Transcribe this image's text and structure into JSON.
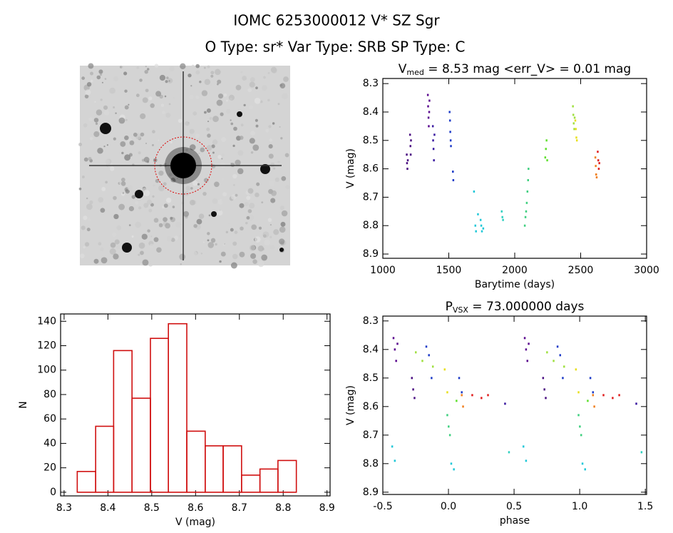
{
  "header": {
    "title": "IOMC 6253000012   V* SZ Sgr",
    "subtitle": "O Type: sr*   Var Type: SRB   SP Type: C"
  },
  "chart_data": [
    {
      "type": "scatter",
      "title": {
        "base": "V",
        "sub": "med",
        "rest": " = 8.53 mag <err_V> = 0.01 mag"
      },
      "xlabel": "Barytime (days)",
      "ylabel": "V (mag)",
      "xlim": [
        1000,
        3000
      ],
      "xticks": [
        1000,
        1500,
        2000,
        2500,
        3000
      ],
      "ylim": [
        8.915,
        8.282
      ],
      "yticks": [
        8.3,
        8.4,
        8.5,
        8.6,
        8.7,
        8.8,
        8.9
      ],
      "series": [
        {
          "color": "#4b0f82",
          "x": [
            1180,
            1182,
            1185,
            1188,
            1205,
            1208,
            1210,
            1212
          ],
          "values": [
            8.55,
            8.58,
            8.6,
            8.57,
            8.48,
            8.52,
            8.55,
            8.5
          ]
        },
        {
          "color": "#5b0a8f",
          "x": [
            1340,
            1342,
            1345,
            1347,
            1350,
            1352
          ],
          "values": [
            8.34,
            8.38,
            8.42,
            8.45,
            8.4,
            8.36
          ]
        },
        {
          "color": "#3a1aa0",
          "x": [
            1378,
            1380,
            1383,
            1386,
            1390
          ],
          "values": [
            8.45,
            8.5,
            8.53,
            8.57,
            8.48
          ]
        },
        {
          "color": "#1e3cc8",
          "x": [
            1505,
            1508,
            1510,
            1513,
            1515,
            1530,
            1533
          ],
          "values": [
            8.4,
            8.43,
            8.47,
            8.5,
            8.52,
            8.61,
            8.64
          ]
        },
        {
          "color": "#22c8d8",
          "x": [
            1690,
            1700,
            1705,
            1720,
            1740,
            1745,
            1750,
            1760
          ],
          "values": [
            8.68,
            8.8,
            8.82,
            8.76,
            8.78,
            8.8,
            8.82,
            8.81
          ]
        },
        {
          "color": "#30d0c0",
          "x": [
            1900,
            1905,
            1910
          ],
          "values": [
            8.75,
            8.77,
            8.78
          ]
        },
        {
          "color": "#40d080",
          "x": [
            2075,
            2080,
            2085,
            2090,
            2095,
            2100,
            2103
          ],
          "values": [
            8.8,
            8.77,
            8.75,
            8.72,
            8.68,
            8.64,
            8.6
          ]
        },
        {
          "color": "#60e030",
          "x": [
            2230,
            2235,
            2240,
            2245
          ],
          "values": [
            8.56,
            8.53,
            8.5,
            8.57
          ]
        },
        {
          "color": "#a0e040",
          "x": [
            2440,
            2443,
            2446,
            2450,
            2453
          ],
          "values": [
            8.38,
            8.41,
            8.44,
            8.46,
            8.42
          ]
        },
        {
          "color": "#e8e020",
          "x": [
            2458,
            2462,
            2466,
            2470
          ],
          "values": [
            8.43,
            8.46,
            8.49,
            8.5
          ]
        },
        {
          "color": "#f08020",
          "x": [
            2610,
            2613,
            2616,
            2620
          ],
          "values": [
            8.56,
            8.59,
            8.62,
            8.63
          ]
        },
        {
          "color": "#e02020",
          "x": [
            2628,
            2632,
            2636,
            2640
          ],
          "values": [
            8.54,
            8.57,
            8.6,
            8.58
          ]
        }
      ]
    },
    {
      "type": "histogram",
      "xlabel": "V (mag)",
      "ylabel": "N",
      "color": "#d01010",
      "bins": [
        8.33,
        8.372,
        8.413,
        8.455,
        8.497,
        8.538,
        8.58,
        8.622,
        8.663,
        8.705,
        8.747,
        8.788,
        8.83
      ],
      "values": [
        17,
        54,
        116,
        77,
        126,
        138,
        50,
        38,
        38,
        14,
        19,
        26
      ],
      "xlim": [
        8.292,
        8.907
      ],
      "xticks": [
        8.3,
        8.4,
        8.5,
        8.6,
        8.7,
        8.8,
        8.9
      ],
      "ylim": [
        -3,
        146
      ],
      "yticks": [
        0,
        20,
        40,
        60,
        80,
        100,
        120,
        140
      ]
    },
    {
      "type": "scatter",
      "title": {
        "base": "P",
        "sub": "VSX",
        "rest": " = 73.000000 days"
      },
      "xlabel": "phase",
      "ylabel": "V (mag)",
      "xlim": [
        -0.5,
        1.51
      ],
      "xticks": [
        -0.5,
        {
          "value": 0,
          "label": "0.0"
        },
        0.5,
        {
          "value": 1,
          "label": "1.0"
        },
        1.5
      ],
      "ylim": [
        8.908,
        8.283
      ],
      "yticks": [
        8.3,
        8.4,
        8.5,
        8.6,
        8.7,
        8.8,
        8.9
      ],
      "series": [
        {
          "color": "#5b0a8f",
          "x": [
            -0.42,
            -0.41,
            -0.4,
            -0.39,
            0.58,
            0.59,
            0.6,
            0.61
          ],
          "values": [
            8.36,
            8.4,
            8.44,
            8.38,
            8.36,
            8.4,
            8.44,
            8.38
          ]
        },
        {
          "color": "#4b0f82",
          "x": [
            -0.28,
            -0.27,
            -0.26,
            0.72,
            0.73,
            0.74
          ],
          "values": [
            8.5,
            8.54,
            8.57,
            8.5,
            8.54,
            8.57
          ]
        },
        {
          "color": "#1e3cc8",
          "x": [
            -0.17,
            -0.15,
            -0.13,
            0.08,
            0.1,
            0.83,
            0.85,
            0.87,
            1.08,
            1.1
          ],
          "values": [
            8.39,
            8.42,
            8.5,
            8.5,
            8.55,
            8.39,
            8.42,
            8.5,
            8.5,
            8.55
          ]
        },
        {
          "color": "#a0e040",
          "x": [
            -0.25,
            -0.2,
            -0.12,
            0.75,
            0.8,
            0.88
          ],
          "values": [
            8.41,
            8.44,
            8.46,
            8.41,
            8.44,
            8.46
          ]
        },
        {
          "color": "#e8e020",
          "x": [
            -0.03,
            -0.01,
            0.97,
            0.99
          ],
          "values": [
            8.47,
            8.55,
            8.47,
            8.55
          ]
        },
        {
          "color": "#40d080",
          "x": [
            -0.01,
            0.0,
            0.01,
            0.99,
            1.0,
            1.01
          ],
          "values": [
            8.63,
            8.67,
            8.7,
            8.63,
            8.67,
            8.7
          ]
        },
        {
          "color": "#22c8d8",
          "x": [
            -0.43,
            -0.41,
            0.02,
            0.04,
            0.57,
            0.59,
            1.02,
            1.04
          ],
          "values": [
            8.74,
            8.79,
            8.8,
            8.82,
            8.74,
            8.79,
            8.8,
            8.82
          ]
        },
        {
          "color": "#30d0c0",
          "x": [
            0.46,
            1.47
          ],
          "values": [
            8.76,
            8.76
          ]
        },
        {
          "color": "#f08020",
          "x": [
            0.1,
            0.11,
            1.1,
            1.11
          ],
          "values": [
            8.56,
            8.6,
            8.56,
            8.6
          ]
        },
        {
          "color": "#e02020",
          "x": [
            0.18,
            0.25,
            0.3,
            1.18,
            1.25,
            1.3
          ],
          "values": [
            8.56,
            8.57,
            8.56,
            8.56,
            8.57,
            8.56
          ]
        },
        {
          "color": "#3a1aa0",
          "x": [
            0.43,
            1.43
          ],
          "values": [
            8.59,
            8.59
          ]
        },
        {
          "color": "#60e030",
          "x": [
            0.06,
            1.06
          ],
          "values": [
            8.58,
            8.58
          ]
        }
      ]
    }
  ]
}
